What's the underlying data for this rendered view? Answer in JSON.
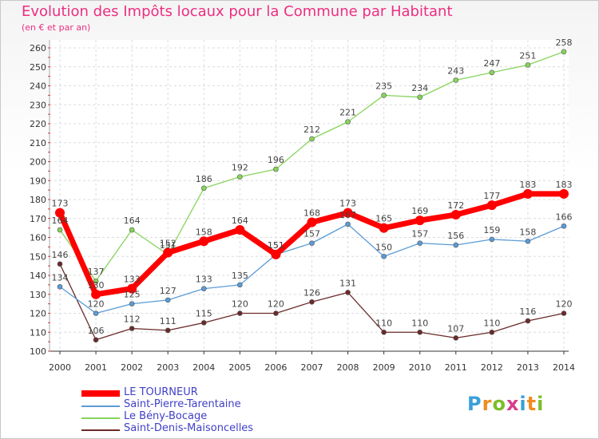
{
  "title": "Evolution des Impôts locaux pour la Commune par Habitant",
  "subtitle": "(en € et par an)",
  "logo": {
    "text": "Proxiti",
    "letter_colors": [
      "#3a9fd8",
      "#f08c1e",
      "#7cbd2a",
      "#d83c8c",
      "#3a9fd8",
      "#f08c1e",
      "#7cbd2a"
    ]
  },
  "chart_data": {
    "type": "line",
    "title": "Evolution des Impôts locaux pour la Commune par Habitant",
    "subtitle": "(en € et par an)",
    "x": [
      "2000",
      "2001",
      "2002",
      "2003",
      "2004",
      "2005",
      "2006",
      "2007",
      "2008",
      "2009",
      "2010",
      "2011",
      "2012",
      "2013",
      "2014"
    ],
    "ylim": [
      100,
      260
    ],
    "yticks": [
      100,
      110,
      120,
      130,
      140,
      150,
      160,
      170,
      180,
      190,
      200,
      210,
      220,
      230,
      240,
      250,
      260
    ],
    "grid": true,
    "legend_position": "bottom-left",
    "series": [
      {
        "name": "LE TOURNEUR",
        "color": "#ff0000",
        "values": [
          173,
          130,
          133,
          152,
          158,
          164,
          151,
          168,
          173,
          165,
          169,
          172,
          177,
          183,
          183
        ]
      },
      {
        "name": "Saint-Pierre-Tarentaine",
        "color": "#5b9bd5",
        "values": [
          134,
          120,
          125,
          127,
          133,
          135,
          151,
          157,
          167,
          150,
          157,
          156,
          159,
          158,
          166
        ]
      },
      {
        "name": "Le Bény-Bocage",
        "color": "#86d45a",
        "values": [
          164,
          137,
          164,
          151,
          186,
          192,
          196,
          212,
          221,
          235,
          234,
          243,
          247,
          251,
          258
        ]
      },
      {
        "name": "Saint-Denis-Maisoncelles",
        "color": "#6b2a2a",
        "values": [
          146,
          106,
          112,
          111,
          115,
          120,
          120,
          126,
          131,
          110,
          110,
          107,
          110,
          116,
          120
        ]
      }
    ]
  }
}
